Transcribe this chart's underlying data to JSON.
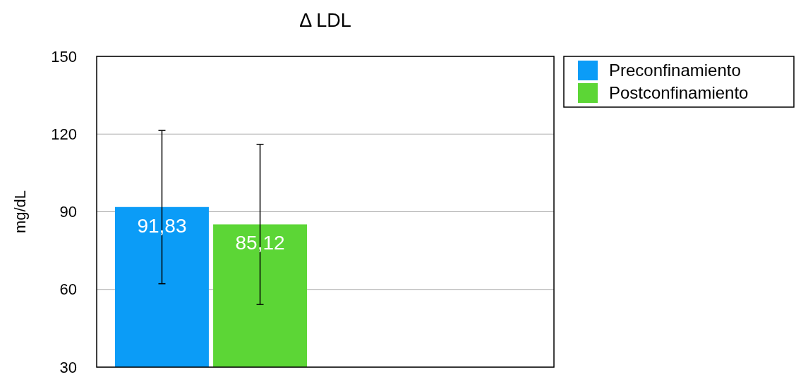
{
  "chart_data": {
    "type": "bar",
    "title": "Δ LDL",
    "ylabel": "mg/dL",
    "categories": [
      null,
      null
    ],
    "series": [
      {
        "name": "Preconfinamiento",
        "color": "#0b9cf7",
        "values": [
          91.83,
          null
        ],
        "value_labels": [
          "91,83",
          null
        ],
        "errors": [
          [
            62.2,
            121.4
          ],
          null
        ]
      },
      {
        "name": "Postconfinamiento",
        "color": "#5cd636",
        "values": [
          85.12,
          null
        ],
        "value_labels": [
          "85,12",
          null
        ],
        "errors": [
          [
            54.2,
            116.0
          ],
          null
        ]
      }
    ],
    "ylim": [
      30,
      150
    ],
    "yticks": [
      30,
      60,
      90,
      120,
      150
    ],
    "grid": "y",
    "legend": "top right"
  }
}
